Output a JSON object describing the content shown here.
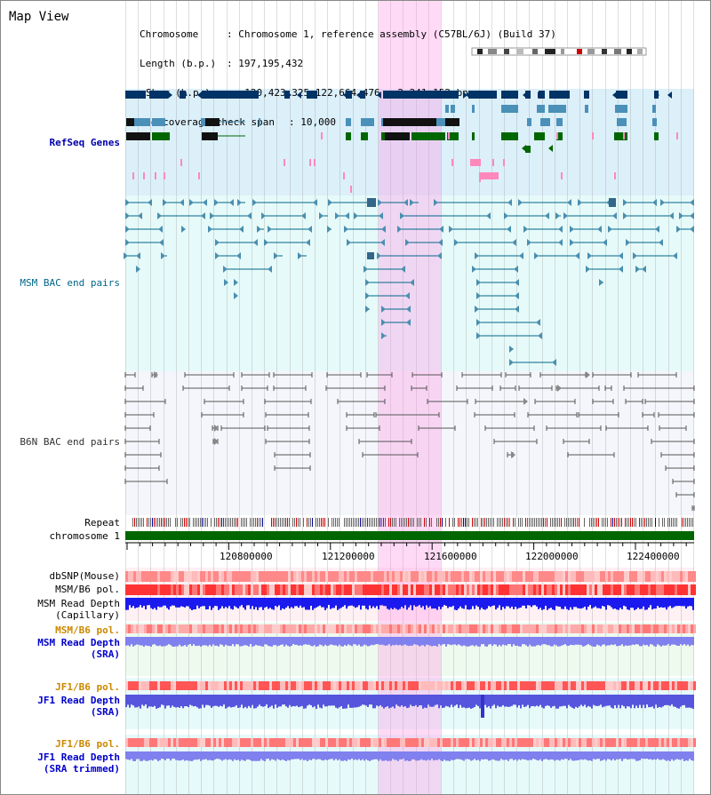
{
  "view": {
    "title": "Map View",
    "chromosome_key": "Chromosome",
    "chromosome_val": ": Chromosome 1, reference assembly (C57BL/6J) (Build 37)",
    "length_key": "Length (b.p.)",
    "length_val": ": 197,195,432",
    "show_key": "Show (b.p.)",
    "show_val": ": 120,423,325-122,664,476 : 2,241,152 bp",
    "coverage_key": "Read coverage check span",
    "coverage_val": ": 10,000"
  },
  "tracks": {
    "refseq": "RefSeq Genes",
    "msm_bac": "MSM BAC end pairs",
    "b6n_bac": "B6N BAC end pairs",
    "repeat": "Repeat",
    "chromosome": "chromosome 1",
    "dbsnp": "dbSNP(Mouse)",
    "msm_b6_pol": "MSM/B6 pol.",
    "msm_depth_cap_1": "MSM Read Depth",
    "msm_depth_cap_2": "(Capillary)",
    "msm_b6_pol2": "MSM/B6 pol.",
    "msm_depth_sra_1": "MSM Read Depth",
    "msm_depth_sra_2": "(SRA)",
    "jf1_pol_1": "JF1/B6 pol.",
    "jf1_depth_sra_1": "JF1 Read Depth",
    "jf1_depth_sra_2": "(SRA)",
    "jf1_pol_2": "JF1/B6 pol.",
    "jf1_depth_trim_1": "JF1 Read Depth",
    "jf1_depth_trim_2": "(SRA trimmed)"
  },
  "axis": {
    "ticks": [
      "120800000",
      "121200000",
      "121600000",
      "122000000",
      "122400000"
    ]
  },
  "colors": {
    "refseq_bg": "#dcf0fa",
    "msm_bg": "#e6fafa",
    "b6n_bg": "#f4f6fb",
    "highlight": "#ff96e6",
    "gene_dark": "#003366",
    "gene_light": "#4a90b8",
    "gene_green": "#006600",
    "msm_line": "#006688",
    "b6n_line": "#555555",
    "chrom_bar": "#006600",
    "depth_cap": "#1a1aee",
    "depth_sra": "#8080ee"
  }
}
